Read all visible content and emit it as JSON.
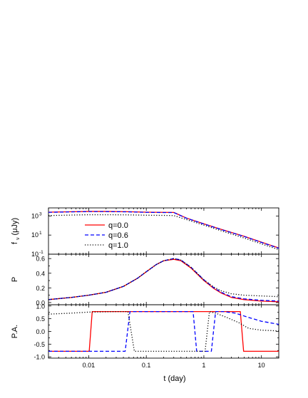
{
  "chart_data": {
    "type": "line",
    "x_scale": "log",
    "xlim": [
      0.002,
      20
    ],
    "xlabel": "t (day)",
    "x_ticks": [
      {
        "value": 0.01,
        "label": "0.01"
      },
      {
        "value": 0.1,
        "label": "0.1"
      },
      {
        "value": 1,
        "label": "1"
      },
      {
        "value": 10,
        "label": "10"
      }
    ],
    "legend": {
      "placement": "upper-left of top panel",
      "entries": [
        {
          "name": "q=0.0",
          "color": "#ff0000",
          "style": "solid"
        },
        {
          "name": "q=0.6",
          "color": "#0000ff",
          "style": "dashed"
        },
        {
          "name": "q=1.0",
          "color": "#000000",
          "style": "dotted"
        }
      ]
    },
    "panels": [
      {
        "id": "flux",
        "ylabel_main": "f",
        "ylabel_sub": "ν",
        "ylabel_rest": "(μJy)",
        "y_scale": "log",
        "ylim": [
          0.1,
          7000
        ],
        "y_ticks": [
          {
            "value": 0.1,
            "base": "10",
            "exp": "-1"
          },
          {
            "value": 10,
            "base": "10",
            "exp": "1"
          },
          {
            "value": 1000,
            "base": "10",
            "exp": "3"
          }
        ],
        "series": [
          {
            "name": "q=0.0",
            "color": "#ff0000",
            "style": "solid",
            "x": [
              0.002,
              0.005,
              0.01,
              0.02,
              0.05,
              0.1,
              0.2,
              0.3,
              0.5,
              1,
              2,
              5,
              10,
              20
            ],
            "y": [
              2500,
              2800,
              3000,
              3000,
              2800,
              2500,
              2400,
              2350,
              600,
              150,
              40,
              7.5,
              1.8,
              0.45
            ]
          },
          {
            "name": "q=0.6",
            "color": "#0000ff",
            "style": "dashed",
            "x": [
              0.002,
              0.005,
              0.01,
              0.02,
              0.05,
              0.1,
              0.2,
              0.3,
              0.5,
              1,
              2,
              5,
              10,
              20
            ],
            "y": [
              2400,
              2700,
              2900,
              2900,
              2700,
              2400,
              2300,
              2300,
              580,
              145,
              38,
              7.2,
              1.7,
              0.42
            ]
          },
          {
            "name": "q=1.0",
            "color": "#000000",
            "style": "dotted",
            "x": [
              0.002,
              0.005,
              0.01,
              0.02,
              0.05,
              0.1,
              0.2,
              0.3,
              0.5,
              1,
              2,
              5,
              10,
              20
            ],
            "y": [
              1100,
              1250,
              1350,
              1350,
              1300,
              1200,
              1150,
              1100,
              420,
              110,
              28,
              5,
              1.2,
              0.3
            ]
          }
        ]
      },
      {
        "id": "polarization",
        "ylabel": "P",
        "y_scale": "linear",
        "ylim": [
          -0.03,
          0.66
        ],
        "y_ticks": [
          {
            "value": 0.0,
            "label": "0.0"
          },
          {
            "value": 0.2,
            "label": "0.2"
          },
          {
            "value": 0.4,
            "label": "0.4"
          },
          {
            "value": 0.6,
            "label": "0.6"
          }
        ],
        "series": [
          {
            "name": "q=0.0",
            "color": "#ff0000",
            "style": "solid",
            "x": [
              0.002,
              0.005,
              0.01,
              0.02,
              0.04,
              0.07,
              0.1,
              0.15,
              0.2,
              0.3,
              0.4,
              0.6,
              1,
              1.5,
              2,
              3,
              5,
              10,
              20
            ],
            "y": [
              0.04,
              0.07,
              0.1,
              0.14,
              0.22,
              0.33,
              0.42,
              0.52,
              0.57,
              0.59,
              0.57,
              0.47,
              0.3,
              0.19,
              0.13,
              0.07,
              0.04,
              0.02,
              0.01
            ]
          },
          {
            "name": "q=0.6",
            "color": "#0000ff",
            "style": "dashed",
            "x": [
              0.002,
              0.005,
              0.01,
              0.02,
              0.04,
              0.07,
              0.1,
              0.15,
              0.2,
              0.3,
              0.4,
              0.6,
              1,
              1.5,
              2,
              3,
              5,
              10,
              20
            ],
            "y": [
              0.04,
              0.07,
              0.1,
              0.14,
              0.22,
              0.33,
              0.42,
              0.52,
              0.57,
              0.6,
              0.58,
              0.48,
              0.31,
              0.2,
              0.14,
              0.08,
              0.05,
              0.03,
              0.02
            ]
          },
          {
            "name": "q=1.0",
            "color": "#000000",
            "style": "dotted",
            "x": [
              0.002,
              0.005,
              0.01,
              0.02,
              0.04,
              0.07,
              0.1,
              0.15,
              0.2,
              0.3,
              0.4,
              0.6,
              1,
              1.5,
              2,
              3,
              5,
              10,
              20
            ],
            "y": [
              0.04,
              0.07,
              0.1,
              0.14,
              0.22,
              0.33,
              0.42,
              0.52,
              0.57,
              0.6,
              0.58,
              0.48,
              0.31,
              0.21,
              0.16,
              0.12,
              0.1,
              0.09,
              0.08
            ]
          }
        ]
      },
      {
        "id": "position_angle",
        "ylabel": "P.A.",
        "y_scale": "linear",
        "ylim": [
          -1.05,
          1.05
        ],
        "y_ticks": [
          {
            "value": -1.0,
            "label": "-1.0"
          },
          {
            "value": -0.5,
            "label": "-0.5"
          },
          {
            "value": 0.0,
            "label": "0.0"
          },
          {
            "value": 0.5,
            "label": "0.5"
          },
          {
            "value": 1.0,
            "label": "1.0"
          }
        ],
        "series": [
          {
            "name": "q=0.0",
            "color": "#ff0000",
            "style": "solid",
            "x": [
              0.002,
              0.0102,
              0.0115,
              4.3,
              4.9,
              20
            ],
            "y": [
              -0.78,
              -0.78,
              0.78,
              0.78,
              -0.78,
              -0.78
            ]
          },
          {
            "name": "q=0.6",
            "color": "#0000ff",
            "style": "dashed",
            "x": [
              0.002,
              0.043,
              0.052,
              0.65,
              0.75,
              1.35,
              1.6,
              2.2,
              3.5,
              6,
              10,
              20
            ],
            "y": [
              -0.78,
              -0.78,
              0.78,
              0.78,
              -0.78,
              -0.78,
              0.78,
              0.78,
              0.72,
              0.55,
              0.4,
              0.28
            ]
          },
          {
            "name": "q=1.0",
            "color": "#000000",
            "style": "dotted",
            "x": [
              0.002,
              0.005,
              0.01,
              0.03,
              0.048,
              0.062,
              1.05,
              1.25,
              1.6,
              2.5,
              4,
              6,
              10,
              20
            ],
            "y": [
              0.68,
              0.72,
              0.76,
              0.78,
              0.78,
              -0.78,
              -0.78,
              0.78,
              0.72,
              0.55,
              0.35,
              0.12,
              0.05,
              0.02
            ]
          }
        ]
      }
    ]
  }
}
